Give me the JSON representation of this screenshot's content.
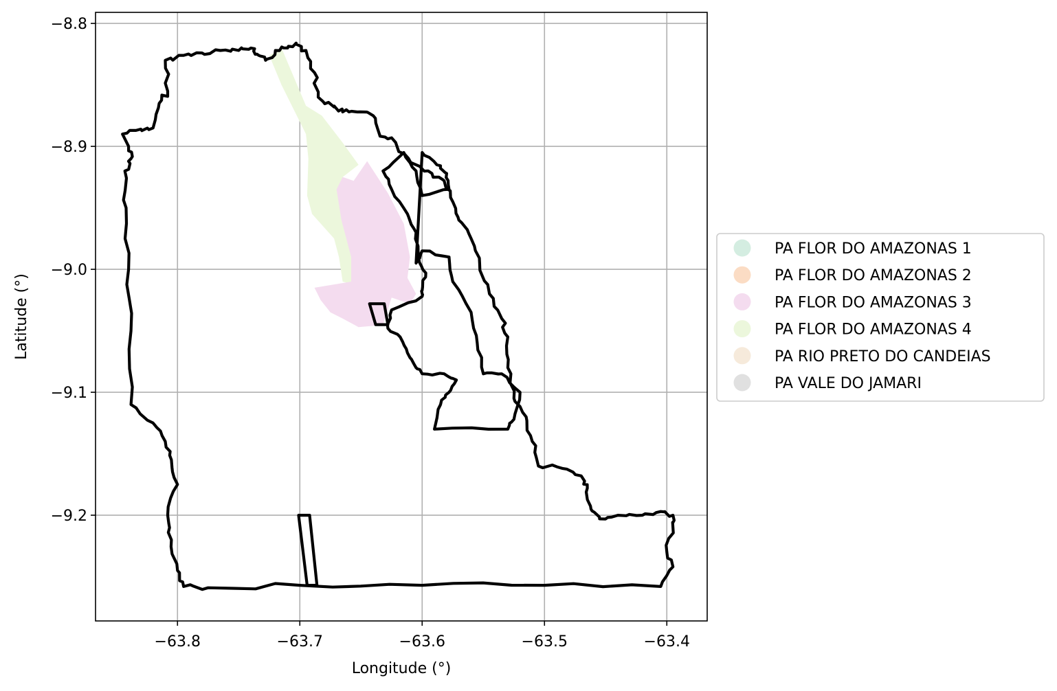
{
  "chart_data": {
    "type": "map",
    "xlabel": "Longitude (°)",
    "ylabel": "Latitude (°)",
    "xlim": [
      -63.867,
      -63.367
    ],
    "ylim": [
      -9.286,
      -8.791
    ],
    "xticks": [
      -63.8,
      -63.7,
      -63.6,
      -63.5,
      -63.4
    ],
    "yticks": [
      -8.8,
      -8.9,
      -9.0,
      -9.1,
      -9.2
    ],
    "xtick_labels": [
      "−63.8",
      "−63.7",
      "−63.6",
      "−63.5",
      "−63.4"
    ],
    "ytick_labels": [
      "−8.8",
      "−8.9",
      "−9.0",
      "−9.1",
      "−9.2"
    ],
    "grid": true,
    "legend_position": "center-right, outside plot",
    "legend": [
      {
        "label": "PA FLOR DO AMAZONAS 1",
        "color": "#d4ede1"
      },
      {
        "label": "PA FLOR DO AMAZONAS 2",
        "color": "#fbdcc4"
      },
      {
        "label": "PA FLOR DO AMAZONAS 3",
        "color": "#f4dcef"
      },
      {
        "label": "PA FLOR DO AMAZONAS 4",
        "color": "#ecf7dc"
      },
      {
        "label": "PA RIO PRETO DO CANDEIAS",
        "color": "#f6eadb"
      },
      {
        "label": "PA VALE DO JAMARI",
        "color": "#e0e0e0"
      }
    ],
    "regions": [
      {
        "name": "PA FLOR DO AMAZONAS 4",
        "fill": "#ecf7dc",
        "coords": [
          [
            -63.725,
            -8.826
          ],
          [
            -63.715,
            -8.82
          ],
          [
            -63.695,
            -8.867
          ],
          [
            -63.682,
            -8.875
          ],
          [
            -63.665,
            -8.897
          ],
          [
            -63.652,
            -8.915
          ],
          [
            -63.665,
            -8.925
          ],
          [
            -63.662,
            -8.94
          ],
          [
            -63.655,
            -8.96
          ],
          [
            -63.658,
            -8.985
          ],
          [
            -63.655,
            -9.003
          ],
          [
            -63.645,
            -9.008
          ],
          [
            -63.657,
            -9.012
          ],
          [
            -63.665,
            -9.01
          ],
          [
            -63.668,
            -8.99
          ],
          [
            -63.672,
            -8.975
          ],
          [
            -63.69,
            -8.955
          ],
          [
            -63.694,
            -8.94
          ],
          [
            -63.693,
            -8.91
          ],
          [
            -63.695,
            -8.89
          ],
          [
            -63.715,
            -8.85
          ]
        ]
      },
      {
        "name": "PA FLOR DO AMAZONAS 3",
        "fill": "#f4dcef",
        "coords": [
          [
            -63.645,
            -8.912
          ],
          [
            -63.628,
            -8.938
          ],
          [
            -63.615,
            -8.963
          ],
          [
            -63.61,
            -8.99
          ],
          [
            -63.612,
            -9.007
          ],
          [
            -63.605,
            -9.02
          ],
          [
            -63.61,
            -9.028
          ],
          [
            -63.625,
            -9.023
          ],
          [
            -63.632,
            -9.045
          ],
          [
            -63.64,
            -9.046
          ],
          [
            -63.652,
            -9.047
          ],
          [
            -63.665,
            -9.04
          ],
          [
            -63.675,
            -9.035
          ],
          [
            -63.683,
            -9.025
          ],
          [
            -63.688,
            -9.015
          ],
          [
            -63.658,
            -9.01
          ],
          [
            -63.658,
            -8.99
          ],
          [
            -63.662,
            -8.975
          ],
          [
            -63.666,
            -8.96
          ],
          [
            -63.67,
            -8.935
          ],
          [
            -63.665,
            -8.925
          ],
          [
            -63.656,
            -8.928
          ]
        ]
      }
    ],
    "boundaries": [
      {
        "name": "outer boundary",
        "coords": [
          [
            -63.845,
            -8.89
          ],
          [
            -63.83,
            -8.886
          ],
          [
            -63.82,
            -8.885
          ],
          [
            -63.815,
            -8.865
          ],
          [
            -63.808,
            -8.855
          ],
          [
            -63.81,
            -8.83
          ],
          [
            -63.795,
            -8.826
          ],
          [
            -63.78,
            -8.824
          ],
          [
            -63.765,
            -8.822
          ],
          [
            -63.75,
            -8.822
          ],
          [
            -63.74,
            -8.82
          ],
          [
            -63.735,
            -8.825
          ],
          [
            -63.728,
            -8.83
          ],
          [
            -63.72,
            -8.822
          ],
          [
            -63.71,
            -8.82
          ],
          [
            -63.703,
            -8.816
          ],
          [
            -63.695,
            -8.822
          ],
          [
            -63.688,
            -8.84
          ],
          [
            -63.685,
            -8.86
          ],
          [
            -63.672,
            -8.868
          ],
          [
            -63.665,
            -8.872
          ],
          [
            -63.653,
            -8.872
          ],
          [
            -63.64,
            -8.875
          ],
          [
            -63.635,
            -8.89
          ],
          [
            -63.625,
            -8.893
          ],
          [
            -63.615,
            -8.906
          ],
          [
            -63.605,
            -8.915
          ],
          [
            -63.592,
            -8.922
          ],
          [
            -63.582,
            -8.928
          ],
          [
            -63.575,
            -8.945
          ],
          [
            -63.57,
            -8.96
          ],
          [
            -63.56,
            -8.975
          ],
          [
            -63.553,
            -8.995
          ],
          [
            -63.545,
            -9.02
          ],
          [
            -63.535,
            -9.04
          ],
          [
            -63.53,
            -9.055
          ],
          [
            -63.53,
            -9.08
          ],
          [
            -63.525,
            -9.105
          ],
          [
            -63.515,
            -9.12
          ],
          [
            -63.51,
            -9.14
          ],
          [
            -63.505,
            -9.16
          ],
          [
            -63.485,
            -9.162
          ],
          [
            -63.47,
            -9.168
          ],
          [
            -63.465,
            -9.178
          ],
          [
            -63.462,
            -9.195
          ],
          [
            -63.455,
            -9.203
          ],
          [
            -63.44,
            -9.2
          ],
          [
            -63.42,
            -9.2
          ],
          [
            -63.405,
            -9.197
          ],
          [
            -63.395,
            -9.2
          ],
          [
            -63.395,
            -9.21
          ],
          [
            -63.4,
            -9.23
          ],
          [
            -63.395,
            -9.242
          ],
          [
            -63.405,
            -9.258
          ],
          [
            -63.5,
            -9.257
          ],
          [
            -63.6,
            -9.257
          ],
          [
            -63.7,
            -9.257
          ],
          [
            -63.775,
            -9.259
          ],
          [
            -63.795,
            -9.258
          ],
          [
            -63.8,
            -9.245
          ],
          [
            -63.805,
            -9.22
          ],
          [
            -63.808,
            -9.2
          ],
          [
            -63.8,
            -9.175
          ],
          [
            -63.805,
            -9.155
          ],
          [
            -63.81,
            -9.14
          ],
          [
            -63.82,
            -9.125
          ],
          [
            -63.838,
            -9.11
          ],
          [
            -63.838,
            -9.05
          ],
          [
            -63.84,
            -9.0
          ],
          [
            -63.842,
            -8.95
          ],
          [
            -63.843,
            -8.92
          ],
          [
            -63.838,
            -8.91
          ],
          [
            -63.84,
            -8.9
          ]
        ]
      },
      {
        "name": "inner parcel",
        "coords": [
          [
            -63.6,
            -8.905
          ],
          [
            -63.588,
            -8.915
          ],
          [
            -63.58,
            -8.922
          ],
          [
            -63.578,
            -8.935
          ],
          [
            -63.6,
            -8.94
          ],
          [
            -63.605,
            -8.92
          ],
          [
            -63.615,
            -8.905
          ],
          [
            -63.632,
            -8.92
          ],
          [
            -63.625,
            -8.935
          ],
          [
            -63.612,
            -8.955
          ],
          [
            -63.605,
            -8.97
          ],
          [
            -63.603,
            -8.99
          ],
          [
            -63.597,
            -9.003
          ],
          [
            -63.6,
            -9.017
          ],
          [
            -63.6,
            -9.022
          ],
          [
            -63.625,
            -9.033
          ],
          [
            -63.628,
            -9.048
          ],
          [
            -63.618,
            -9.055
          ],
          [
            -63.612,
            -9.068
          ],
          [
            -63.605,
            -9.08
          ],
          [
            -63.6,
            -9.085
          ],
          [
            -63.582,
            -9.085
          ],
          [
            -63.572,
            -9.09
          ],
          [
            -63.578,
            -9.1
          ],
          [
            -63.585,
            -9.11
          ],
          [
            -63.59,
            -9.13
          ],
          [
            -63.53,
            -9.13
          ],
          [
            -63.525,
            -9.122
          ],
          [
            -63.52,
            -9.1
          ],
          [
            -63.535,
            -9.085
          ],
          [
            -63.55,
            -9.085
          ],
          [
            -63.555,
            -9.06
          ],
          [
            -63.56,
            -9.035
          ],
          [
            -63.575,
            -9.01
          ],
          [
            -63.578,
            -8.99
          ],
          [
            -63.6,
            -8.985
          ],
          [
            -63.605,
            -8.995
          ]
        ]
      },
      {
        "name": "southern strip",
        "coords": [
          [
            -63.701,
            -9.2
          ],
          [
            -63.694,
            -9.257
          ],
          [
            -63.686,
            -9.257
          ],
          [
            -63.692,
            -9.2
          ],
          [
            -63.701,
            -9.2
          ]
        ]
      },
      {
        "name": "small parcel",
        "coords": [
          [
            -63.643,
            -9.028
          ],
          [
            -63.638,
            -9.045
          ],
          [
            -63.628,
            -9.045
          ],
          [
            -63.631,
            -9.028
          ],
          [
            -63.643,
            -9.028
          ]
        ]
      }
    ]
  }
}
